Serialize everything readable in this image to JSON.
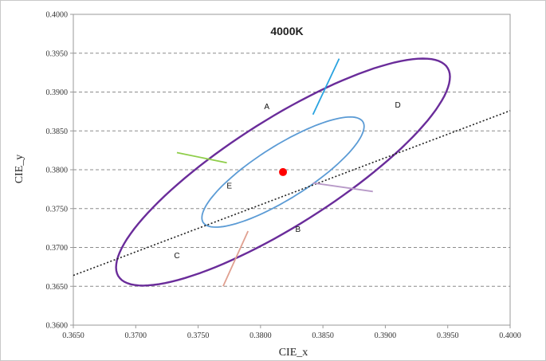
{
  "chart_data": {
    "type": "scatter",
    "title": "4000K",
    "xlabel": "CIE_x",
    "ylabel": "CIE_y",
    "xlim": [
      0.365,
      0.4
    ],
    "ylim": [
      0.36,
      0.4
    ],
    "grid": true,
    "xticks": [
      {
        "value": 0.365,
        "label": "0.3650"
      },
      {
        "value": 0.37,
        "label": "0.3700"
      },
      {
        "value": 0.375,
        "label": "0.3750"
      },
      {
        "value": 0.38,
        "label": "0.3800"
      },
      {
        "value": 0.385,
        "label": "0.3850"
      },
      {
        "value": 0.39,
        "label": "0.3900"
      },
      {
        "value": 0.395,
        "label": "0.3950"
      },
      {
        "value": 0.4,
        "label": "0.4000"
      }
    ],
    "yticks": [
      {
        "value": 0.36,
        "label": "0.3600"
      },
      {
        "value": 0.365,
        "label": "0.3650"
      },
      {
        "value": 0.37,
        "label": "0.3700"
      },
      {
        "value": 0.375,
        "label": "0.3750"
      },
      {
        "value": 0.38,
        "label": "0.3800"
      },
      {
        "value": 0.385,
        "label": "0.3850"
      },
      {
        "value": 0.39,
        "label": "0.3900"
      },
      {
        "value": 0.395,
        "label": "0.3950"
      },
      {
        "value": 0.4,
        "label": "0.4000"
      }
    ],
    "center_point": {
      "x": 0.3818,
      "y": 0.3797,
      "color": "#ff0000"
    },
    "ellipses": [
      {
        "cx": 0.3818,
        "cy": 0.3797,
        "rx": 0.019,
        "ry": 0.0056,
        "angle_deg": 48,
        "color": "#6a2c9a"
      },
      {
        "cx": 0.3818,
        "cy": 0.3797,
        "rx": 0.0092,
        "ry": 0.0028,
        "angle_deg": 48,
        "color": "#5b9bd5"
      }
    ],
    "blackbody_line": {
      "x": [
        0.365,
        0.4
      ],
      "y": [
        0.3664,
        0.3876
      ],
      "color": "#222222"
    },
    "segments": [
      {
        "color": "#29a3e0",
        "x": [
          0.3842,
          0.3863
        ],
        "y": [
          0.3871,
          0.3943
        ]
      },
      {
        "color": "#8fce4a",
        "x": [
          0.3773,
          0.3733
        ],
        "y": [
          0.3809,
          0.3822
        ]
      },
      {
        "color": "#b89ac8",
        "x": [
          0.3842,
          0.389
        ],
        "y": [
          0.3783,
          0.3772
        ]
      },
      {
        "color": "#e0a090",
        "x": [
          0.379,
          0.377
        ],
        "y": [
          0.3721,
          0.365
        ]
      }
    ],
    "region_labels": [
      {
        "text": "A",
        "x": 0.3805,
        "y": 0.3878
      },
      {
        "text": "D",
        "x": 0.391,
        "y": 0.388
      },
      {
        "text": "E",
        "x": 0.3775,
        "y": 0.3776
      },
      {
        "text": "B",
        "x": 0.383,
        "y": 0.372
      },
      {
        "text": "C",
        "x": 0.3733,
        "y": 0.3686
      }
    ]
  }
}
